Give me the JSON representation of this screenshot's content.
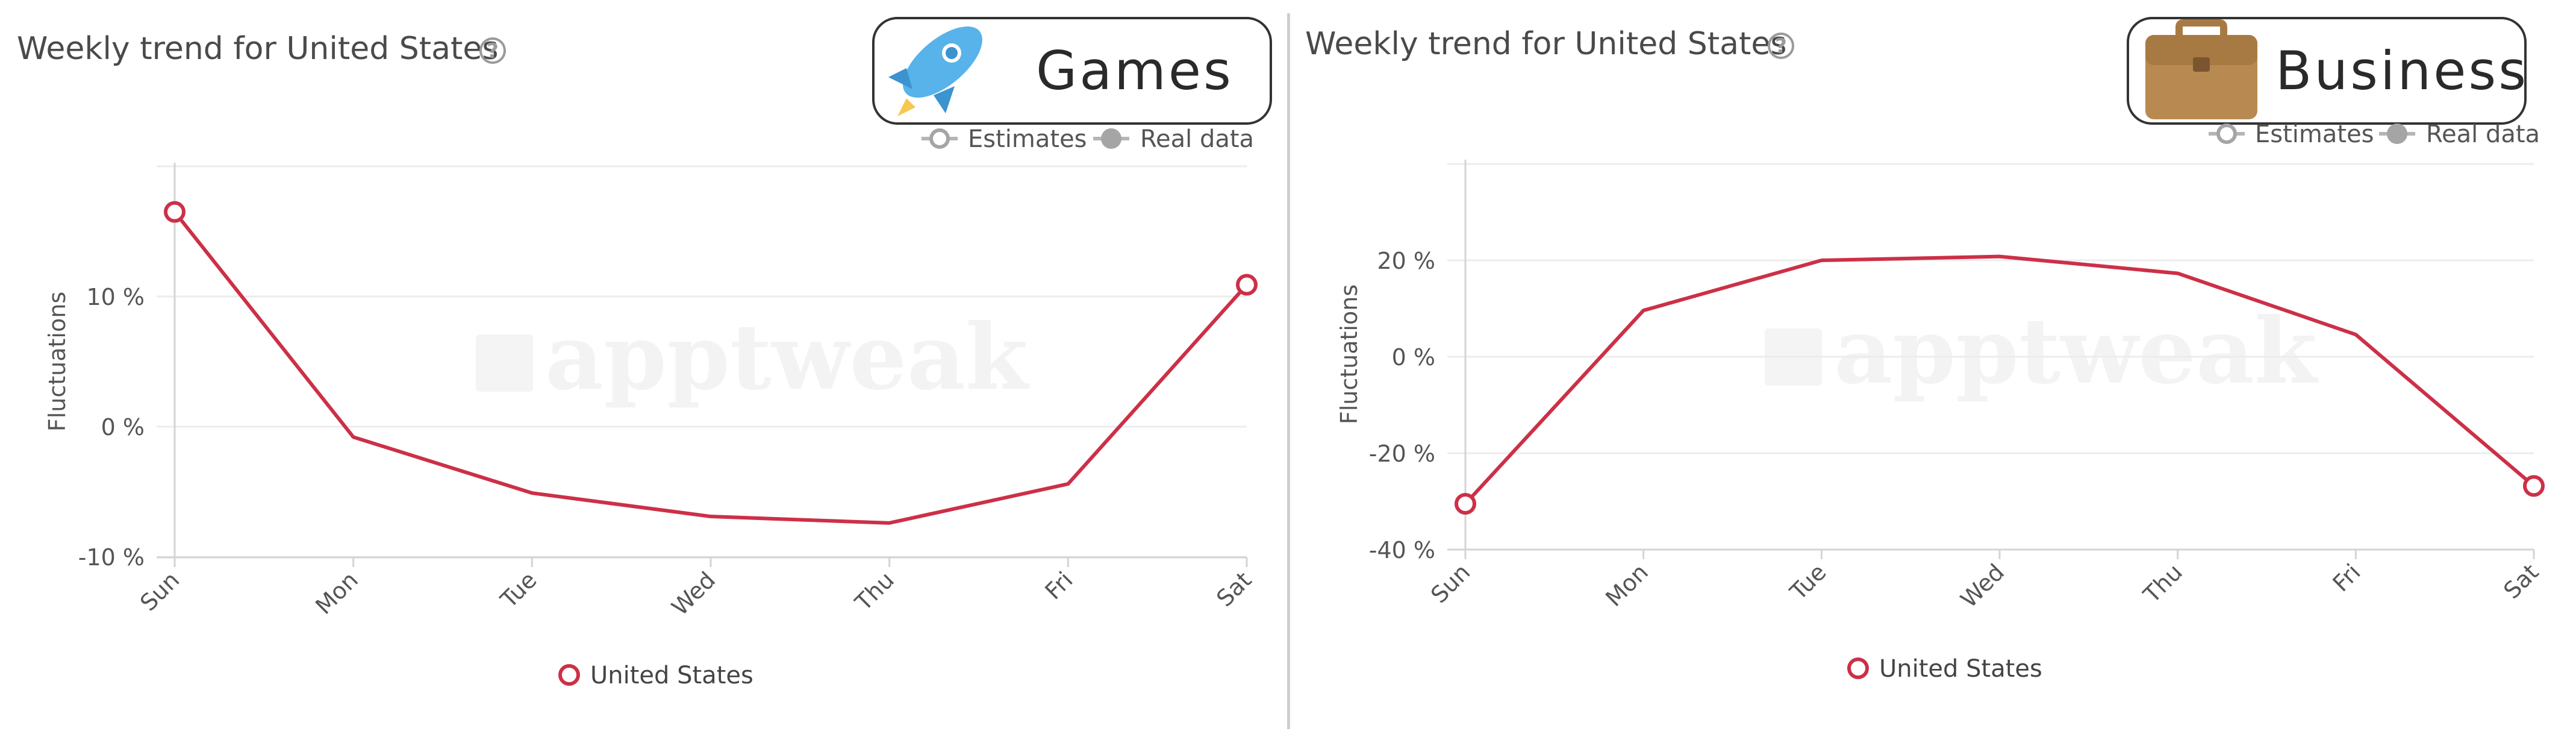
{
  "chart_data": [
    {
      "type": "line",
      "title": "Weekly trend for United States",
      "badge": {
        "label": "Games",
        "icon": "rocket-icon"
      },
      "ylabel": "Fluctuations",
      "xlabel": "",
      "categories": [
        "Sun",
        "Mon",
        "Tue",
        "Wed",
        "Thu",
        "Fri",
        "Sat"
      ],
      "y_ticks": [
        -10,
        0,
        10
      ],
      "y_tick_labels": [
        "-10 %",
        "0 %",
        "10 %"
      ],
      "ylim": [
        -10,
        20
      ],
      "series": [
        {
          "name": "United States",
          "values": [
            16.5,
            -0.8,
            -5.1,
            -6.9,
            -7.4,
            -4.4,
            10.9
          ],
          "color": "#cc3047"
        }
      ],
      "legend_position": "bottom-center",
      "toggles": [
        "Estimates",
        "Real data"
      ],
      "grid": true,
      "watermark": "apptweak"
    },
    {
      "type": "line",
      "title": "Weekly trend for United States",
      "badge": {
        "label": "Business",
        "icon": "briefcase-icon"
      },
      "ylabel": "Fluctuations",
      "xlabel": "",
      "categories": [
        "Sun",
        "Mon",
        "Tue",
        "Wed",
        "Thu",
        "Fri",
        "Sat"
      ],
      "y_ticks": [
        -40,
        -20,
        0,
        20
      ],
      "y_tick_labels": [
        "-40 %",
        "-20 %",
        "0 %",
        "20 %"
      ],
      "ylim": [
        -40,
        40
      ],
      "series": [
        {
          "name": "United States",
          "values": [
            -30.5,
            9.6,
            20,
            20.8,
            17.3,
            4.6,
            -26.8
          ],
          "color": "#cc3047"
        }
      ],
      "legend_position": "bottom-center",
      "toggles": [
        "Estimates",
        "Real data"
      ],
      "grid": true,
      "watermark": "apptweak"
    }
  ]
}
